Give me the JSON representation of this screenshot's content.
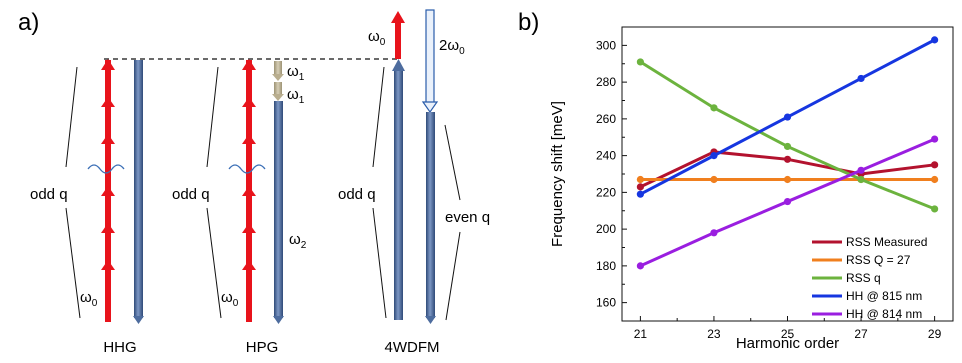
{
  "panel_a": {
    "label": "a)",
    "schemes": [
      {
        "name": "HHG",
        "left_label": "odd q",
        "symbol": "ω",
        "sub": "0"
      },
      {
        "name": "HPG",
        "left_label": "odd q",
        "symbol": "ω",
        "sub": "0",
        "omega1_a": "ω",
        "omega1_a_sub": "1",
        "omega1_b": "ω",
        "omega1_b_sub": "1",
        "omega2": "ω",
        "omega2_sub": "2"
      },
      {
        "name": "4WDFM",
        "left_label": "odd q",
        "right_label": "even q",
        "top_symbol": "ω",
        "top_sub": "0",
        "two_omega": "2ω",
        "two_omega_sub": "0"
      }
    ],
    "colors": {
      "pump_red": "#e8131b",
      "harmonic_blue": "#4d6c9e",
      "omega1_tan": "#b9ae8f",
      "two_omega_outline": "#2a5caa",
      "wave": "#3b6fb6"
    }
  },
  "panel_b": {
    "label": "b)"
  },
  "chart_data": {
    "type": "line",
    "xlabel": "Harmonic order",
    "ylabel": "Frequency shift [meV]",
    "x": [
      21,
      23,
      25,
      27,
      29
    ],
    "x_ticks": [
      "21",
      "23",
      "25",
      "27",
      "29"
    ],
    "y_ticks": [
      "160",
      "180",
      "200",
      "220",
      "240",
      "260",
      "280",
      "300"
    ],
    "xlim": [
      20.5,
      29.5
    ],
    "ylim": [
      150,
      310
    ],
    "legend_position": "bottom-right",
    "grid": false,
    "series": [
      {
        "name": "RSS Measured",
        "color": "#b3122e",
        "values": [
          223,
          242,
          238,
          230,
          235
        ]
      },
      {
        "name": "RSS Q = 27",
        "color": "#f07f1e",
        "values": [
          227,
          227,
          227,
          227,
          227
        ]
      },
      {
        "name": "RSS q",
        "color": "#6cb33e",
        "values": [
          291,
          266,
          245,
          227,
          211
        ]
      },
      {
        "name": "HH @ 815 nm",
        "color": "#1636e0",
        "values": [
          219,
          240,
          261,
          282,
          303
        ]
      },
      {
        "name": "HH @ 814 nm",
        "color": "#9a1ee0",
        "values": [
          180,
          198,
          215,
          232,
          249
        ]
      }
    ]
  }
}
